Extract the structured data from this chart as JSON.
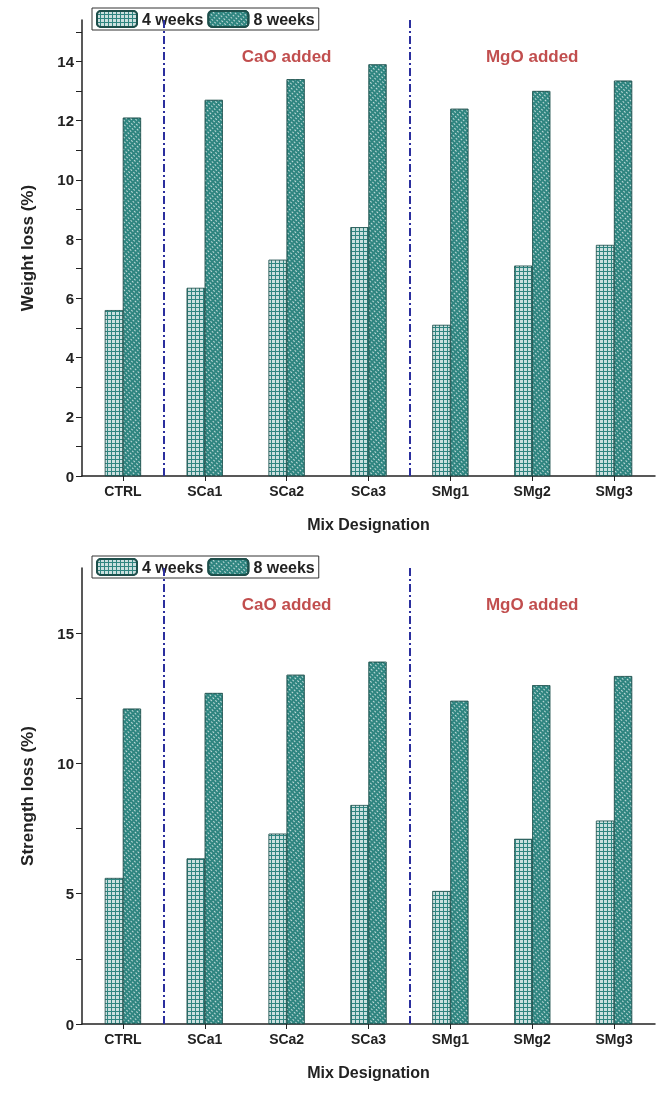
{
  "chart_data": [
    {
      "type": "bar",
      "xlabel": "Mix Designation",
      "ylabel": "Weight loss (%)",
      "categories": [
        "CTRL",
        "SCa1",
        "SCa2",
        "SCa3",
        "SMg1",
        "SMg2",
        "SMg3"
      ],
      "series": [
        {
          "name": "4 weeks",
          "color": "#2f8580",
          "values": [
            5.6,
            6.35,
            7.3,
            8.4,
            5.1,
            7.1,
            7.8
          ]
        },
        {
          "name": "8 weeks",
          "color": "#2f8580",
          "values": [
            12.1,
            12.7,
            13.4,
            13.9,
            12.4,
            13.0,
            13.35
          ]
        }
      ],
      "ylim": [
        0,
        15.4
      ],
      "yticks": [
        0,
        {
          "value": 1,
          "label": null
        },
        2,
        {
          "value": 3,
          "label": null
        },
        4,
        {
          "value": 5,
          "label": null
        },
        6,
        {
          "value": 7,
          "label": null
        },
        8,
        {
          "value": 9,
          "label": null
        },
        10,
        {
          "value": 11,
          "label": null
        },
        12,
        {
          "value": 13,
          "label": null
        },
        14,
        {
          "value": 15,
          "label": null
        }
      ],
      "annotations": [
        "CaO added",
        "MgO added"
      ],
      "legend": "top left",
      "grid": false
    },
    {
      "type": "bar",
      "xlabel": "Mix Designation",
      "ylabel": "Strength loss (%)",
      "categories": [
        "CTRL",
        "SCa1",
        "SCa2",
        "SCa3",
        "SMg1",
        "SMg2",
        "SMg3"
      ],
      "series": [
        {
          "name": "4 weeks",
          "color": "#2f8580",
          "values": [
            5.6,
            6.35,
            7.3,
            8.4,
            5.1,
            7.1,
            7.8
          ]
        },
        {
          "name": "8 weeks",
          "color": "#2f8580",
          "values": [
            12.1,
            12.7,
            13.4,
            13.9,
            12.4,
            13.0,
            13.35
          ]
        }
      ],
      "ylim": [
        0,
        17.5
      ],
      "yticks": [
        0,
        {
          "value": 2.5,
          "label": null
        },
        5,
        {
          "value": 7.5,
          "label": null
        },
        10,
        {
          "value": 12.5,
          "label": null
        },
        15
      ],
      "annotations": [
        "CaO added",
        "MgO added"
      ],
      "legend": "top left",
      "grid": false
    }
  ]
}
